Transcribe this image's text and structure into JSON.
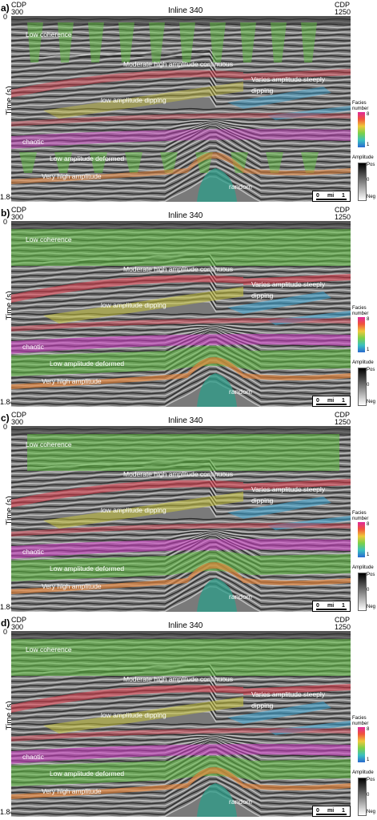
{
  "panels": [
    {
      "letter": "a)"
    },
    {
      "letter": "b)"
    },
    {
      "letter": "c)"
    },
    {
      "letter": "d)"
    }
  ],
  "axis": {
    "cdp_label": "CDP",
    "cdp_left": "300",
    "cdp_right": "1250",
    "inline": "Inline 340",
    "time_label": "Time (s)",
    "time_start": "0",
    "time_end": "1.84"
  },
  "facies": {
    "low_coherence": "Low coherence",
    "moderate": "Moderate high amplitude continuous",
    "varies": "Varies amplitude steeply",
    "dipping": "dipping",
    "low_dipping": "low amplitude dipping",
    "chaotic": "chaotic",
    "low_deformed": "Low amplitude deformed",
    "very_high": "Very high amplitude",
    "random": "random"
  },
  "legend": {
    "facies_title_1": "Facies",
    "facies_title_2": "number",
    "facies_max": "8",
    "facies_min": "1",
    "amp_title": "Amplitude",
    "amp_pos": "Pos",
    "amp_zero": "0",
    "amp_neg": "Neg"
  },
  "scale": {
    "zero": "0",
    "unit": "mi",
    "one": "1"
  },
  "colors": {
    "green": "#5fbf3f",
    "red": "#e03a4a",
    "yellow": "#c9c43c",
    "blue": "#3aa6d6",
    "magenta": "#d23cc9",
    "orange": "#e8853a",
    "teal": "#2e9e8a"
  }
}
